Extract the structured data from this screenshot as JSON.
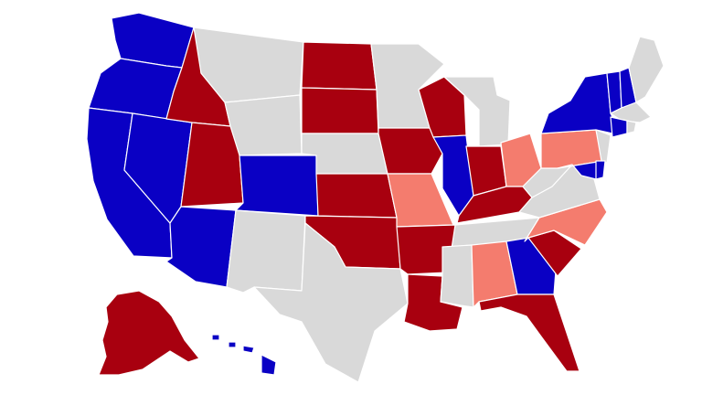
{
  "colors": {
    "dem": "#0a00c4",
    "rep": "#a8000f",
    "lean_rep": "#f47c6e",
    "none": "#d9d9d9",
    "border": "#ffffff"
  },
  "states": [
    {
      "code": "WA",
      "status": "dem"
    },
    {
      "code": "OR",
      "status": "dem"
    },
    {
      "code": "CA",
      "status": "dem"
    },
    {
      "code": "NV",
      "status": "dem"
    },
    {
      "code": "AZ",
      "status": "dem"
    },
    {
      "code": "CO",
      "status": "dem"
    },
    {
      "code": "IL",
      "status": "dem"
    },
    {
      "code": "NY",
      "status": "dem"
    },
    {
      "code": "VT",
      "status": "dem"
    },
    {
      "code": "NH",
      "status": "dem"
    },
    {
      "code": "CT",
      "status": "dem"
    },
    {
      "code": "MD",
      "status": "dem"
    },
    {
      "code": "DE",
      "status": "dem"
    },
    {
      "code": "GA",
      "status": "dem"
    },
    {
      "code": "HI",
      "status": "dem"
    },
    {
      "code": "ID",
      "status": "rep"
    },
    {
      "code": "UT",
      "status": "rep"
    },
    {
      "code": "ND",
      "status": "rep"
    },
    {
      "code": "SD",
      "status": "rep"
    },
    {
      "code": "KS",
      "status": "rep"
    },
    {
      "code": "OK",
      "status": "rep"
    },
    {
      "code": "IA",
      "status": "rep"
    },
    {
      "code": "WI",
      "status": "rep"
    },
    {
      "code": "IN",
      "status": "rep"
    },
    {
      "code": "KY",
      "status": "rep"
    },
    {
      "code": "AR",
      "status": "rep"
    },
    {
      "code": "LA",
      "status": "rep"
    },
    {
      "code": "SC",
      "status": "rep"
    },
    {
      "code": "FL",
      "status": "rep"
    },
    {
      "code": "AK",
      "status": "rep"
    },
    {
      "code": "MO",
      "status": "lean_rep"
    },
    {
      "code": "OH",
      "status": "lean_rep"
    },
    {
      "code": "PA",
      "status": "lean_rep"
    },
    {
      "code": "NC",
      "status": "lean_rep"
    },
    {
      "code": "AL",
      "status": "lean_rep"
    },
    {
      "code": "MT",
      "status": "none"
    },
    {
      "code": "WY",
      "status": "none"
    },
    {
      "code": "NM",
      "status": "none"
    },
    {
      "code": "TX",
      "status": "none"
    },
    {
      "code": "NE",
      "status": "none"
    },
    {
      "code": "MN",
      "status": "none"
    },
    {
      "code": "MI",
      "status": "none"
    },
    {
      "code": "TN",
      "status": "none"
    },
    {
      "code": "MS",
      "status": "none"
    },
    {
      "code": "VA",
      "status": "none"
    },
    {
      "code": "WV",
      "status": "none"
    },
    {
      "code": "ME",
      "status": "none"
    },
    {
      "code": "MA",
      "status": "none"
    },
    {
      "code": "RI",
      "status": "none"
    },
    {
      "code": "NJ",
      "status": "none"
    }
  ]
}
